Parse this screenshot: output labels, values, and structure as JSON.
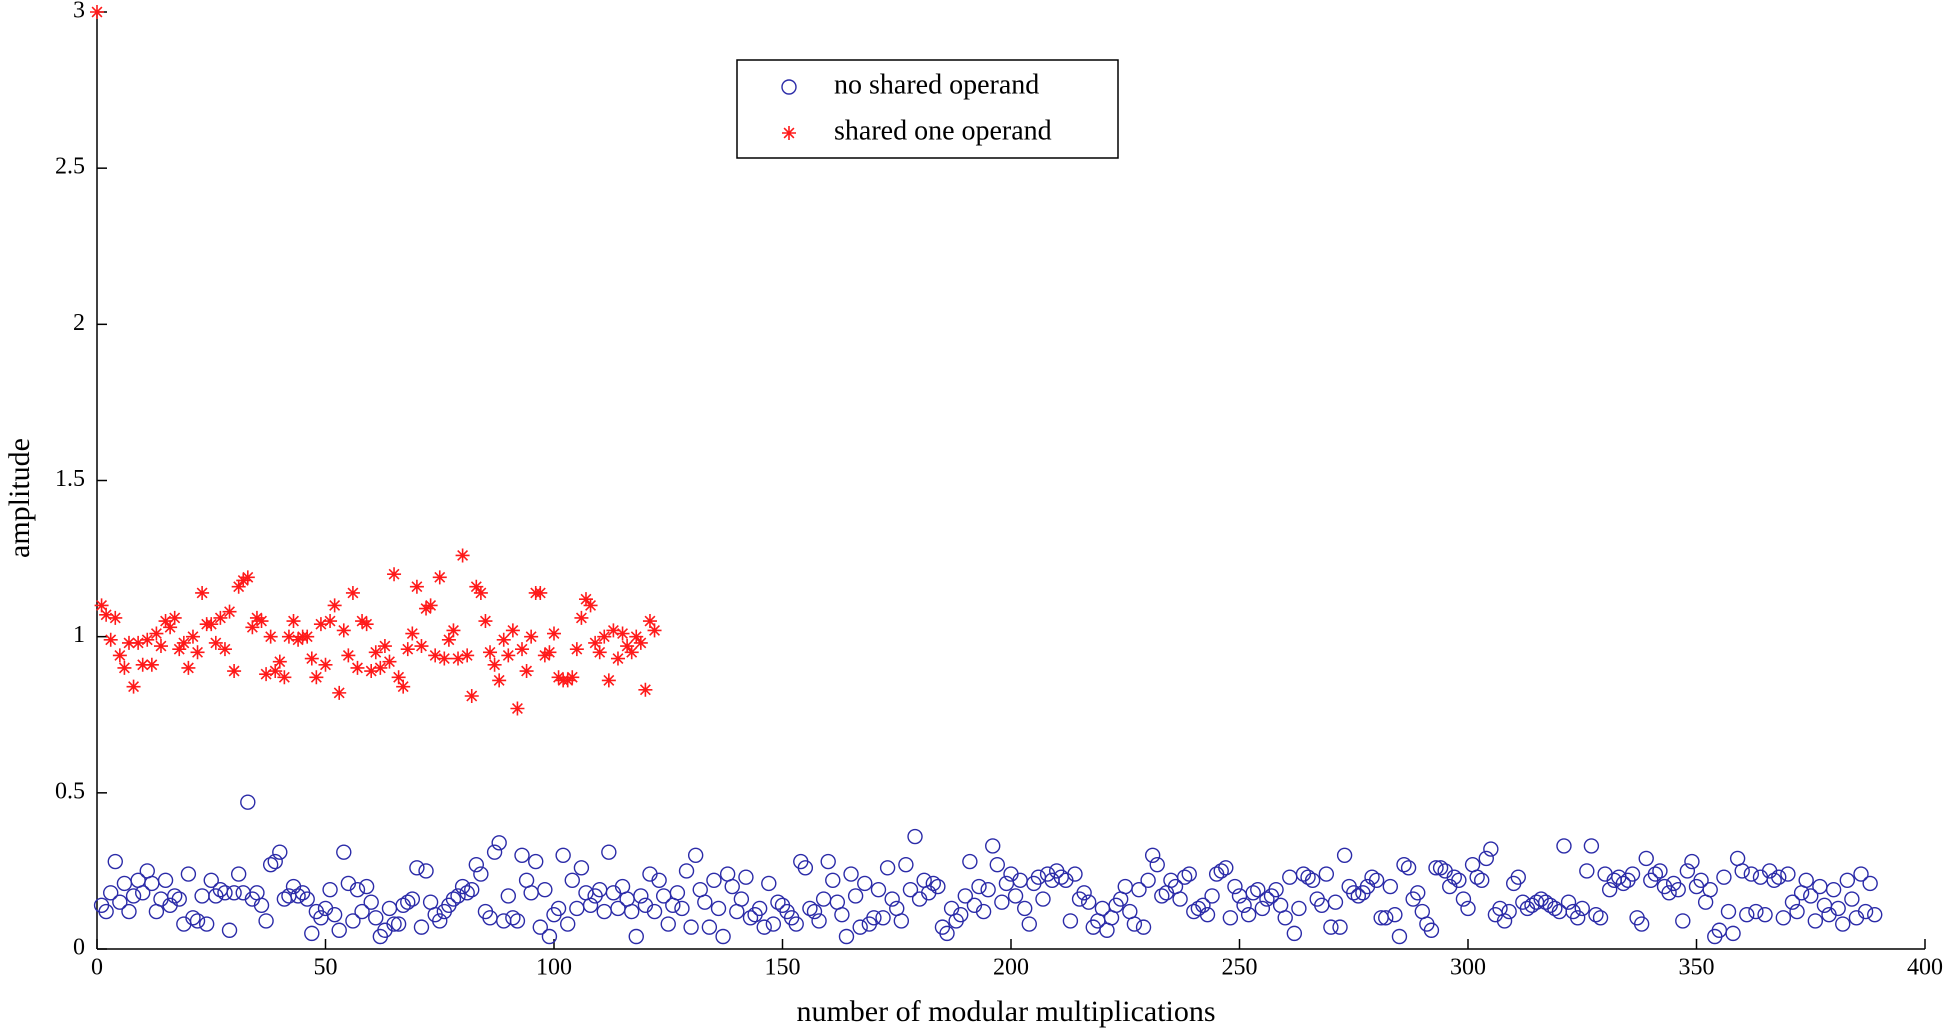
{
  "chart_data": {
    "type": "scatter",
    "xlabel": "number of modular multiplications",
    "ylabel": "amplitude",
    "xlim": [
      0,
      400
    ],
    "xticks": [
      0,
      50,
      100,
      150,
      200,
      250,
      300,
      350,
      400
    ],
    "ylim": [
      0,
      3
    ],
    "yticks": [
      0,
      0.5,
      1,
      1.5,
      2,
      2.5,
      3
    ],
    "grid": false,
    "legend": "top",
    "series": [
      {
        "name": "no shared operand",
        "color": "#2b2ba8",
        "marker": "circle",
        "x": [
          1,
          2,
          3,
          4,
          5,
          6,
          7,
          8,
          9,
          10,
          11,
          12,
          13,
          14,
          15,
          16,
          17,
          18,
          19,
          20,
          21,
          22,
          23,
          24,
          25,
          26,
          27,
          28,
          29,
          30,
          31,
          32,
          33,
          34,
          35,
          36,
          37,
          38,
          39,
          40,
          41,
          42,
          43,
          44,
          45,
          46,
          47,
          48,
          49,
          50,
          51,
          52,
          53,
          54,
          55,
          56,
          57,
          58,
          59,
          60,
          61,
          62,
          63,
          64,
          65,
          66,
          67,
          68,
          69,
          70,
          71,
          72,
          73,
          74,
          75,
          76,
          77,
          78,
          79,
          80,
          81,
          82,
          83,
          84,
          85,
          86,
          87,
          88,
          89,
          90,
          91,
          92,
          93,
          94,
          95,
          96,
          97,
          98,
          99,
          100,
          101,
          102,
          103,
          104,
          105,
          106,
          107,
          108,
          109,
          110,
          111,
          112,
          113,
          114,
          115,
          116,
          117,
          118,
          119,
          120,
          121,
          122,
          123,
          124,
          125,
          126,
          127,
          128,
          129,
          130,
          131,
          132,
          133,
          134,
          135,
          136,
          137,
          138,
          139,
          140,
          141,
          142,
          143,
          144,
          145,
          146,
          147,
          148,
          149,
          150,
          151,
          152,
          153,
          154,
          155,
          156,
          157,
          158,
          159,
          160,
          161,
          162,
          163,
          164,
          165,
          166,
          167,
          168,
          169,
          170,
          171,
          172,
          173,
          174,
          175,
          176,
          177,
          178,
          179,
          180,
          181,
          182,
          183,
          184,
          185,
          186,
          187,
          188,
          189,
          190,
          191,
          192,
          193,
          194,
          195,
          196,
          197,
          198,
          199,
          200,
          201,
          202,
          203,
          204,
          205,
          206,
          207,
          208,
          209,
          210,
          211,
          212,
          213,
          214,
          215,
          216,
          217,
          218,
          219,
          220,
          221,
          222,
          223,
          224,
          225,
          226,
          227,
          228,
          229,
          230,
          231,
          232,
          233,
          234,
          235,
          236,
          237,
          238,
          239,
          240,
          241,
          242,
          243,
          244,
          245,
          246,
          247,
          248,
          249,
          250,
          251,
          252,
          253,
          254,
          255,
          256,
          257,
          258,
          259,
          260,
          261,
          262,
          263,
          264,
          265,
          266,
          267,
          268,
          269,
          270,
          271,
          272,
          273,
          274,
          275,
          276,
          277,
          278,
          279,
          280,
          281,
          282,
          283,
          284,
          285,
          286,
          287,
          288,
          289,
          290,
          291,
          292,
          293,
          294,
          295,
          296,
          297,
          298,
          299,
          300,
          301,
          302,
          303,
          304,
          305,
          306,
          307,
          308,
          309,
          310,
          311,
          312,
          313,
          314,
          315,
          316,
          317,
          318,
          319,
          320,
          321,
          322,
          323,
          324,
          325,
          326,
          327,
          328,
          329,
          330,
          331,
          332,
          333,
          334,
          335,
          336,
          337,
          338,
          339,
          340,
          341,
          342,
          343,
          344,
          345,
          346,
          347,
          348,
          349,
          350,
          351,
          352,
          353,
          354,
          355,
          356,
          357,
          358,
          359,
          360,
          361,
          362,
          363,
          364,
          365,
          366,
          367,
          368,
          369,
          370,
          371,
          372,
          373,
          374,
          375,
          376,
          377,
          378,
          379,
          380,
          381,
          382,
          383,
          384,
          385,
          386,
          387,
          388,
          389
        ],
        "values": [
          0.14,
          0.12,
          0.18,
          0.28,
          0.15,
          0.21,
          0.12,
          0.17,
          0.22,
          0.18,
          0.25,
          0.21,
          0.12,
          0.16,
          0.22,
          0.14,
          0.17,
          0.16,
          0.08,
          0.24,
          0.1,
          0.09,
          0.17,
          0.08,
          0.22,
          0.17,
          0.19,
          0.18,
          0.06,
          0.18,
          0.24,
          0.18,
          0.47,
          0.16,
          0.18,
          0.14,
          0.09,
          0.27,
          0.28,
          0.31,
          0.16,
          0.17,
          0.2,
          0.17,
          0.18,
          0.16,
          0.05,
          0.12,
          0.1,
          0.13,
          0.19,
          0.11,
          0.06,
          0.31,
          0.21,
          0.09,
          0.19,
          0.12,
          0.2,
          0.15,
          0.1,
          0.04,
          0.06,
          0.13,
          0.08,
          0.08,
          0.14,
          0.15,
          0.16,
          0.26,
          0.07,
          0.25,
          0.15,
          0.11,
          0.09,
          0.12,
          0.14,
          0.16,
          0.17,
          0.2,
          0.18,
          0.19,
          0.27,
          0.24,
          0.12,
          0.1,
          0.31,
          0.34,
          0.09,
          0.17,
          0.1,
          0.09,
          0.3,
          0.22,
          0.18,
          0.28,
          0.07,
          0.19,
          0.04,
          0.11,
          0.13,
          0.3,
          0.08,
          0.22,
          0.13,
          0.26,
          0.18,
          0.14,
          0.17,
          0.19,
          0.12,
          0.31,
          0.18,
          0.13,
          0.2,
          0.16,
          0.12,
          0.04,
          0.17,
          0.14,
          0.24,
          0.12,
          0.22,
          0.17,
          0.08,
          0.14,
          0.18,
          0.13,
          0.25,
          0.07,
          0.3,
          0.19,
          0.15,
          0.07,
          0.22,
          0.13,
          0.04,
          0.24,
          0.2,
          0.12,
          0.16,
          0.23,
          0.1,
          0.11,
          0.13,
          0.07,
          0.21,
          0.08,
          0.15,
          0.14,
          0.12,
          0.1,
          0.08,
          0.28,
          0.26,
          0.13,
          0.12,
          0.09,
          0.16,
          0.28,
          0.22,
          0.15,
          0.11,
          0.04,
          0.24,
          0.17,
          0.07,
          0.21,
          0.08,
          0.1,
          0.19,
          0.1,
          0.26,
          0.16,
          0.13,
          0.09,
          0.27,
          0.19,
          0.36,
          0.16,
          0.22,
          0.18,
          0.21,
          0.2,
          0.07,
          0.05,
          0.13,
          0.09,
          0.11,
          0.17,
          0.28,
          0.14,
          0.2,
          0.12,
          0.19,
          0.33,
          0.27,
          0.15,
          0.21,
          0.24,
          0.17,
          0.22,
          0.13,
          0.08,
          0.21,
          0.23,
          0.16,
          0.24,
          0.22,
          0.25,
          0.23,
          0.22,
          0.09,
          0.24,
          0.16,
          0.18,
          0.15,
          0.07,
          0.09,
          0.13,
          0.06,
          0.1,
          0.14,
          0.16,
          0.2,
          0.12,
          0.08,
          0.19,
          0.07,
          0.22,
          0.3,
          0.27,
          0.17,
          0.18,
          0.22,
          0.2,
          0.16,
          0.23,
          0.24,
          0.12,
          0.13,
          0.14,
          0.11,
          0.17,
          0.24,
          0.25,
          0.26,
          0.1,
          0.2,
          0.17,
          0.14,
          0.11,
          0.18,
          0.19,
          0.13,
          0.16,
          0.17,
          0.19,
          0.14,
          0.1,
          0.23,
          0.05,
          0.13,
          0.24,
          0.23,
          0.22,
          0.16,
          0.14,
          0.24,
          0.07,
          0.15,
          0.07,
          0.3,
          0.2,
          0.18,
          0.17,
          0.18,
          0.2,
          0.23,
          0.22,
          0.1,
          0.1,
          0.2,
          0.11,
          0.04,
          0.27,
          0.26,
          0.16,
          0.18,
          0.12,
          0.08,
          0.06,
          0.26,
          0.26,
          0.25,
          0.2,
          0.23,
          0.22,
          0.16,
          0.13,
          0.27,
          0.23,
          0.22,
          0.29,
          0.32,
          0.11,
          0.13,
          0.09,
          0.12,
          0.21,
          0.23,
          0.15,
          0.13,
          0.14,
          0.15,
          0.16,
          0.15,
          0.14,
          0.13,
          0.12,
          0.33,
          0.15,
          0.12,
          0.1,
          0.13,
          0.25,
          0.33,
          0.11,
          0.1,
          0.24,
          0.19,
          0.22,
          0.23,
          0.21,
          0.22,
          0.24,
          0.1,
          0.08,
          0.29,
          0.22,
          0.24,
          0.25,
          0.2,
          0.18,
          0.21,
          0.19,
          0.09,
          0.25,
          0.28,
          0.2,
          0.22,
          0.15,
          0.19,
          0.04,
          0.06,
          0.23,
          0.12,
          0.05,
          0.29,
          0.25,
          0.11,
          0.24,
          0.12,
          0.23,
          0.11,
          0.25,
          0.22,
          0.23,
          0.1,
          0.24,
          0.15,
          0.12,
          0.18,
          0.22,
          0.17,
          0.09,
          0.2,
          0.14,
          0.11,
          0.19,
          0.13,
          0.08,
          0.22,
          0.16,
          0.1,
          0.24,
          0.12,
          0.21,
          0.11
        ]
      },
      {
        "name": "shared one operand",
        "color": "#ff1a1a",
        "marker": "star",
        "x": [
          0,
          1,
          2,
          3,
          4,
          5,
          6,
          7,
          8,
          9,
          10,
          11,
          12,
          13,
          14,
          15,
          16,
          17,
          18,
          19,
          20,
          21,
          22,
          23,
          24,
          25,
          26,
          27,
          28,
          29,
          30,
          31,
          32,
          33,
          34,
          35,
          36,
          37,
          38,
          39,
          40,
          41,
          42,
          43,
          44,
          45,
          46,
          47,
          48,
          49,
          50,
          51,
          52,
          53,
          54,
          55,
          56,
          57,
          58,
          59,
          60,
          61,
          62,
          63,
          64,
          65,
          66,
          67,
          68,
          69,
          70,
          71,
          72,
          73,
          74,
          75,
          76,
          77,
          78,
          79,
          80,
          81,
          82,
          83,
          84,
          85,
          86,
          87,
          88,
          89,
          90,
          91,
          92,
          93,
          94,
          95,
          96,
          97,
          98,
          99,
          100,
          101,
          102,
          103,
          104,
          105,
          106,
          107,
          108,
          109,
          110,
          111,
          112,
          113,
          114,
          115,
          116,
          117,
          118,
          119,
          120,
          121,
          122
        ],
        "values": [
          3,
          1.1,
          1.07,
          0.99,
          1.06,
          0.94,
          0.9,
          0.98,
          0.84,
          0.98,
          0.91,
          0.99,
          0.91,
          1.01,
          0.97,
          1.05,
          1.03,
          1.06,
          0.96,
          0.98,
          0.9,
          1.0,
          0.95,
          1.14,
          1.04,
          1.04,
          0.98,
          1.06,
          0.96,
          1.08,
          0.89,
          1.16,
          1.18,
          1.19,
          1.03,
          1.06,
          1.05,
          0.88,
          1.0,
          0.89,
          0.92,
          0.87,
          1.0,
          1.05,
          0.99,
          1.0,
          1.0,
          0.93,
          0.87,
          1.04,
          0.91,
          1.05,
          1.1,
          0.82,
          1.02,
          0.94,
          1.14,
          0.9,
          1.05,
          1.04,
          0.89,
          0.95,
          0.9,
          0.97,
          0.92,
          1.2,
          0.87,
          0.84,
          0.96,
          1.01,
          1.16,
          0.97,
          1.09,
          1.1,
          0.94,
          1.19,
          0.93,
          0.99,
          1.02,
          0.93,
          1.26,
          0.94,
          0.81,
          1.16,
          1.14,
          1.05,
          0.95,
          0.91,
          0.86,
          0.99,
          0.94,
          1.02,
          0.77,
          0.96,
          0.89,
          1.0,
          1.14,
          1.14,
          0.94,
          0.95,
          1.01,
          0.87,
          0.86,
          0.86,
          0.87,
          0.96,
          1.06,
          1.12,
          1.1,
          0.98,
          0.95,
          1.0,
          0.86,
          1.02,
          0.93,
          1.01,
          0.97,
          0.95,
          1.0,
          0.98,
          0.83,
          1.05,
          1.02
        ]
      }
    ]
  }
}
